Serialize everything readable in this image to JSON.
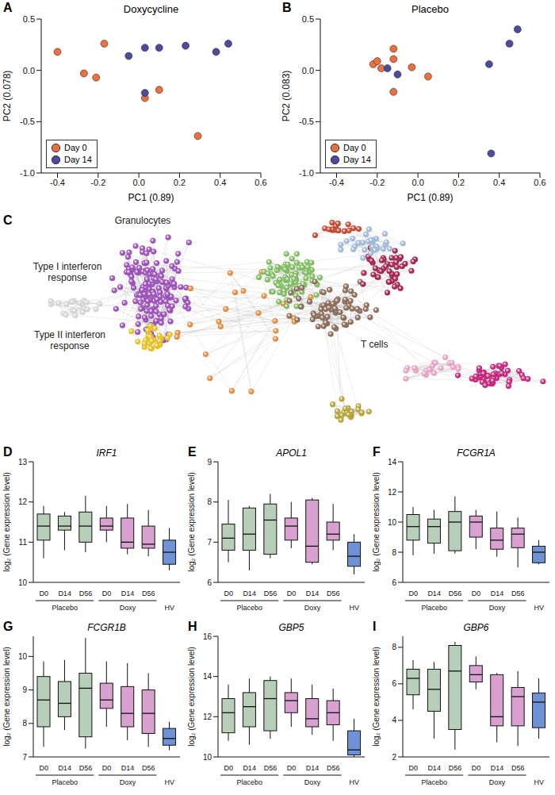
{
  "chart_data": [
    {
      "type": "scatter",
      "panel": "A",
      "title": "Doxycycline",
      "xlabel": "PC1 (0.89)",
      "ylabel": "PC2 (0.078)",
      "xlim": [
        -0.48,
        0.6
      ],
      "xticks": [
        -0.4,
        -0.2,
        {
          "value": 0,
          "label": "0.0"
        },
        0.2,
        0.4,
        0.6
      ],
      "ylim": [
        -1.0,
        0.5
      ],
      "yticks": [
        {
          "value": -1,
          "label": "-1.0"
        },
        -0.5,
        {
          "value": 0,
          "label": "0.0"
        },
        0.5
      ],
      "legend": "lower left",
      "series": [
        {
          "name": "Day 0",
          "color": "#e8713f",
          "x": [
            -0.4,
            -0.27,
            -0.21,
            -0.17,
            0.1,
            0.03,
            0.29
          ],
          "y": [
            0.18,
            -0.03,
            -0.07,
            0.26,
            -0.19,
            -0.27,
            -0.64
          ]
        },
        {
          "name": "Day 14",
          "color": "#4a4c9f",
          "x": [
            -0.05,
            0.03,
            0.1,
            0.23,
            0.03,
            0.38,
            0.44
          ],
          "y": [
            0.14,
            0.22,
            0.22,
            0.24,
            -0.22,
            0.18,
            0.26
          ]
        }
      ]
    },
    {
      "type": "scatter",
      "panel": "B",
      "title": "Placebo",
      "xlabel": "PC1 (0.89)",
      "ylabel": "PC2 (0.083)",
      "xlim": [
        -0.48,
        0.6
      ],
      "xticks": [
        -0.4,
        -0.2,
        {
          "value": 0,
          "label": "0.0"
        },
        0.2,
        0.4,
        0.6
      ],
      "ylim": [
        -1.0,
        0.5
      ],
      "yticks": [
        {
          "value": -1,
          "label": "-1.0"
        },
        -0.5,
        {
          "value": 0,
          "label": "0.0"
        },
        0.5
      ],
      "legend": "lower left",
      "series": [
        {
          "name": "Day 0",
          "color": "#e8713f",
          "x": [
            -0.22,
            -0.2,
            -0.18,
            -0.12,
            -0.12,
            -0.12,
            -0.03,
            0.05
          ],
          "y": [
            0.06,
            0.09,
            0.02,
            0.21,
            0.11,
            -0.21,
            0.03,
            -0.06
          ]
        },
        {
          "name": "Day 14",
          "color": "#4a4c9f",
          "x": [
            -0.15,
            -0.1,
            0.35,
            0.45,
            0.49,
            0.36
          ],
          "y": [
            0.02,
            -0.04,
            0.06,
            0.26,
            0.4,
            -0.81
          ]
        }
      ]
    },
    {
      "type": "network",
      "panel": "C",
      "clusters": [
        {
          "label": "Granulocytes",
          "color": "#9a4fb8",
          "nodes": 160
        },
        {
          "label": "Type I interferon response",
          "color": "#d4d4d4",
          "nodes": 22
        },
        {
          "label": "Type II interferon response",
          "color": "#e6c020",
          "nodes": 28
        },
        {
          "label": null,
          "color": "#e58a3c",
          "nodes": 24
        },
        {
          "label": null,
          "color": "#7dbb5e",
          "nodes": 80
        },
        {
          "label": "T cells",
          "color": "#8a6b58",
          "nodes": 70
        },
        {
          "label": null,
          "color": "#a3224f",
          "nodes": 45
        },
        {
          "label": null,
          "color": "#9fb8d6",
          "nodes": 30
        },
        {
          "label": null,
          "color": "#c2452f",
          "nodes": 15
        },
        {
          "label": null,
          "color": "#c4257a",
          "nodes": 45
        },
        {
          "label": null,
          "color": "#e6a2c4",
          "nodes": 22
        },
        {
          "label": null,
          "color": "#b5a33a",
          "nodes": 22
        }
      ]
    },
    {
      "type": "box",
      "panel": "D",
      "title": "IRF1",
      "ylabel": "log₂ (Gene expression level)",
      "categories": [
        "D0",
        "D14",
        "D56",
        "D0",
        "D14",
        "D56",
        "HV"
      ],
      "groups": [
        "Placebo",
        "Placebo",
        "Placebo",
        "Doxy",
        "Doxy",
        "Doxy",
        null
      ],
      "colors": [
        "#b7cfb9",
        "#b7cfb9",
        "#b7cfb9",
        "#d8a1d0",
        "#d8a1d0",
        "#d8a1d0",
        "#6f92d6"
      ],
      "ylim": [
        10,
        13
      ],
      "yticks": [
        10,
        11,
        12,
        13
      ],
      "min": [
        10.6,
        10.8,
        10.75,
        11.0,
        10.7,
        10.65,
        10.3
      ],
      "q1": [
        11.05,
        11.3,
        11.0,
        11.3,
        10.85,
        10.85,
        10.45
      ],
      "median": [
        11.4,
        11.4,
        11.4,
        11.4,
        11.0,
        10.95,
        10.75
      ],
      "q3": [
        11.7,
        11.65,
        11.75,
        11.6,
        11.6,
        11.4,
        11.05
      ],
      "max": [
        11.9,
        11.75,
        12.15,
        11.9,
        11.95,
        11.8,
        11.35
      ]
    },
    {
      "type": "box",
      "panel": "E",
      "title": "APOL1",
      "ylabel": "log₂ (Gene expression level)",
      "categories": [
        "D0",
        "D14",
        "D56",
        "D0",
        "D14",
        "D56",
        "HV"
      ],
      "groups": [
        "Placebo",
        "Placebo",
        "Placebo",
        "Doxy",
        "Doxy",
        "Doxy",
        null
      ],
      "colors": [
        "#b7cfb9",
        "#b7cfb9",
        "#b7cfb9",
        "#d8a1d0",
        "#d8a1d0",
        "#d8a1d0",
        "#6f92d6"
      ],
      "ylim": [
        6,
        9
      ],
      "yticks": [
        6,
        7,
        8,
        9
      ],
      "min": [
        6.5,
        6.3,
        6.6,
        6.85,
        6.45,
        6.8,
        6.2
      ],
      "q1": [
        6.8,
        6.8,
        6.7,
        7.05,
        6.5,
        7.05,
        6.4
      ],
      "median": [
        7.1,
        7.2,
        7.55,
        7.4,
        6.9,
        7.2,
        6.65
      ],
      "q3": [
        7.45,
        7.85,
        7.95,
        7.6,
        8.05,
        7.5,
        7.0
      ],
      "max": [
        8.05,
        7.9,
        8.2,
        8.0,
        8.1,
        7.95,
        7.2
      ]
    },
    {
      "type": "box",
      "panel": "F",
      "title": "FCGR1A",
      "ylabel": "log₂ (Gene expression level)",
      "categories": [
        "D0",
        "D14",
        "D56",
        "D0",
        "D14",
        "D56",
        "HV"
      ],
      "groups": [
        "Placebo",
        "Placebo",
        "Placebo",
        "Doxy",
        "Doxy",
        "Doxy",
        null
      ],
      "colors": [
        "#b7cfb9",
        "#b7cfb9",
        "#b7cfb9",
        "#d8a1d0",
        "#d8a1d0",
        "#d8a1d0",
        "#6f92d6"
      ],
      "ylim": [
        6,
        14
      ],
      "yticks": [
        6,
        8,
        10,
        12,
        14
      ],
      "min": [
        7.8,
        7.9,
        7.9,
        8.2,
        7.7,
        7.0,
        7.2
      ],
      "q1": [
        8.8,
        8.6,
        8.1,
        9.0,
        8.2,
        8.3,
        7.3
      ],
      "median": [
        9.7,
        9.7,
        10.0,
        10.0,
        8.8,
        9.2,
        8.0
      ],
      "q3": [
        10.5,
        10.2,
        10.7,
        10.4,
        9.6,
        9.6,
        8.4
      ],
      "max": [
        11.0,
        10.8,
        11.7,
        10.8,
        10.7,
        10.3,
        8.8
      ]
    },
    {
      "type": "box",
      "panel": "G",
      "title": "FCGR1B",
      "ylabel": "log₂ (Gene expression level)",
      "categories": [
        "D0",
        "D14",
        "D56",
        "D0",
        "D14",
        "D56",
        "HV"
      ],
      "groups": [
        "Placebo",
        "Placebo",
        "Placebo",
        "Doxy",
        "Doxy",
        "Doxy",
        null
      ],
      "colors": [
        "#b7cfb9",
        "#b7cfb9",
        "#b7cfb9",
        "#d8a1d0",
        "#d8a1d0",
        "#d8a1d0",
        "#6f92d6"
      ],
      "ylim": [
        7,
        10.6
      ],
      "yticks": [
        7,
        8,
        9,
        10
      ],
      "min": [
        7.3,
        7.8,
        7.25,
        7.9,
        7.5,
        7.3,
        7.2
      ],
      "q1": [
        7.9,
        8.2,
        7.6,
        8.45,
        7.9,
        7.7,
        7.35
      ],
      "median": [
        8.7,
        8.6,
        9.05,
        8.7,
        8.3,
        8.3,
        7.55
      ],
      "q3": [
        9.4,
        9.25,
        9.5,
        9.2,
        9.1,
        9.0,
        7.85
      ],
      "max": [
        9.85,
        9.9,
        10.55,
        9.85,
        9.8,
        9.5,
        8.05
      ]
    },
    {
      "type": "box",
      "panel": "H",
      "title": "GBP5",
      "ylabel": "log₂ (Gene expression level)",
      "categories": [
        "D0",
        "D14",
        "D56",
        "D0",
        "D14",
        "D56",
        "HV"
      ],
      "groups": [
        "Placebo",
        "Placebo",
        "Placebo",
        "Doxy",
        "Doxy",
        "Doxy",
        null
      ],
      "colors": [
        "#b7cfb9",
        "#b7cfb9",
        "#b7cfb9",
        "#d8a1d0",
        "#d8a1d0",
        "#d8a1d0",
        "#6f92d6"
      ],
      "ylim": [
        10,
        16
      ],
      "yticks": [
        10,
        12,
        14,
        16
      ],
      "min": [
        10.8,
        10.6,
        10.9,
        11.5,
        11.1,
        10.8,
        10.0
      ],
      "q1": [
        11.2,
        11.5,
        11.3,
        12.2,
        11.5,
        11.6,
        10.1
      ],
      "median": [
        12.2,
        12.5,
        12.9,
        12.8,
        11.9,
        12.2,
        10.35
      ],
      "q3": [
        12.9,
        13.2,
        13.8,
        13.2,
        12.9,
        12.8,
        11.3
      ],
      "max": [
        13.6,
        13.9,
        14.0,
        13.9,
        13.6,
        13.4,
        11.9
      ]
    },
    {
      "type": "box",
      "panel": "I",
      "title": "GBP6",
      "ylabel": "log₂ (Gene expression level)",
      "categories": [
        "D0",
        "D14",
        "D56",
        "D0",
        "D14",
        "D56",
        "HV"
      ],
      "groups": [
        "Placebo",
        "Placebo",
        "Placebo",
        "Doxy",
        "Doxy",
        "Doxy",
        null
      ],
      "colors": [
        "#b7cfb9",
        "#b7cfb9",
        "#b7cfb9",
        "#d8a1d0",
        "#d8a1d0",
        "#d8a1d0",
        "#6f92d6"
      ],
      "ylim": [
        2,
        8.6
      ],
      "yticks": [
        2,
        4,
        6,
        8
      ],
      "min": [
        4.6,
        3.0,
        2.4,
        5.7,
        2.8,
        2.6,
        3.0
      ],
      "q1": [
        5.4,
        4.5,
        3.5,
        6.1,
        3.7,
        3.7,
        3.6
      ],
      "median": [
        6.3,
        5.7,
        6.7,
        6.5,
        4.2,
        5.3,
        5.0
      ],
      "q3": [
        6.8,
        6.8,
        8.1,
        7.0,
        6.5,
        5.8,
        5.5
      ],
      "max": [
        7.3,
        7.2,
        8.3,
        7.5,
        6.6,
        6.7,
        6.3
      ]
    }
  ]
}
